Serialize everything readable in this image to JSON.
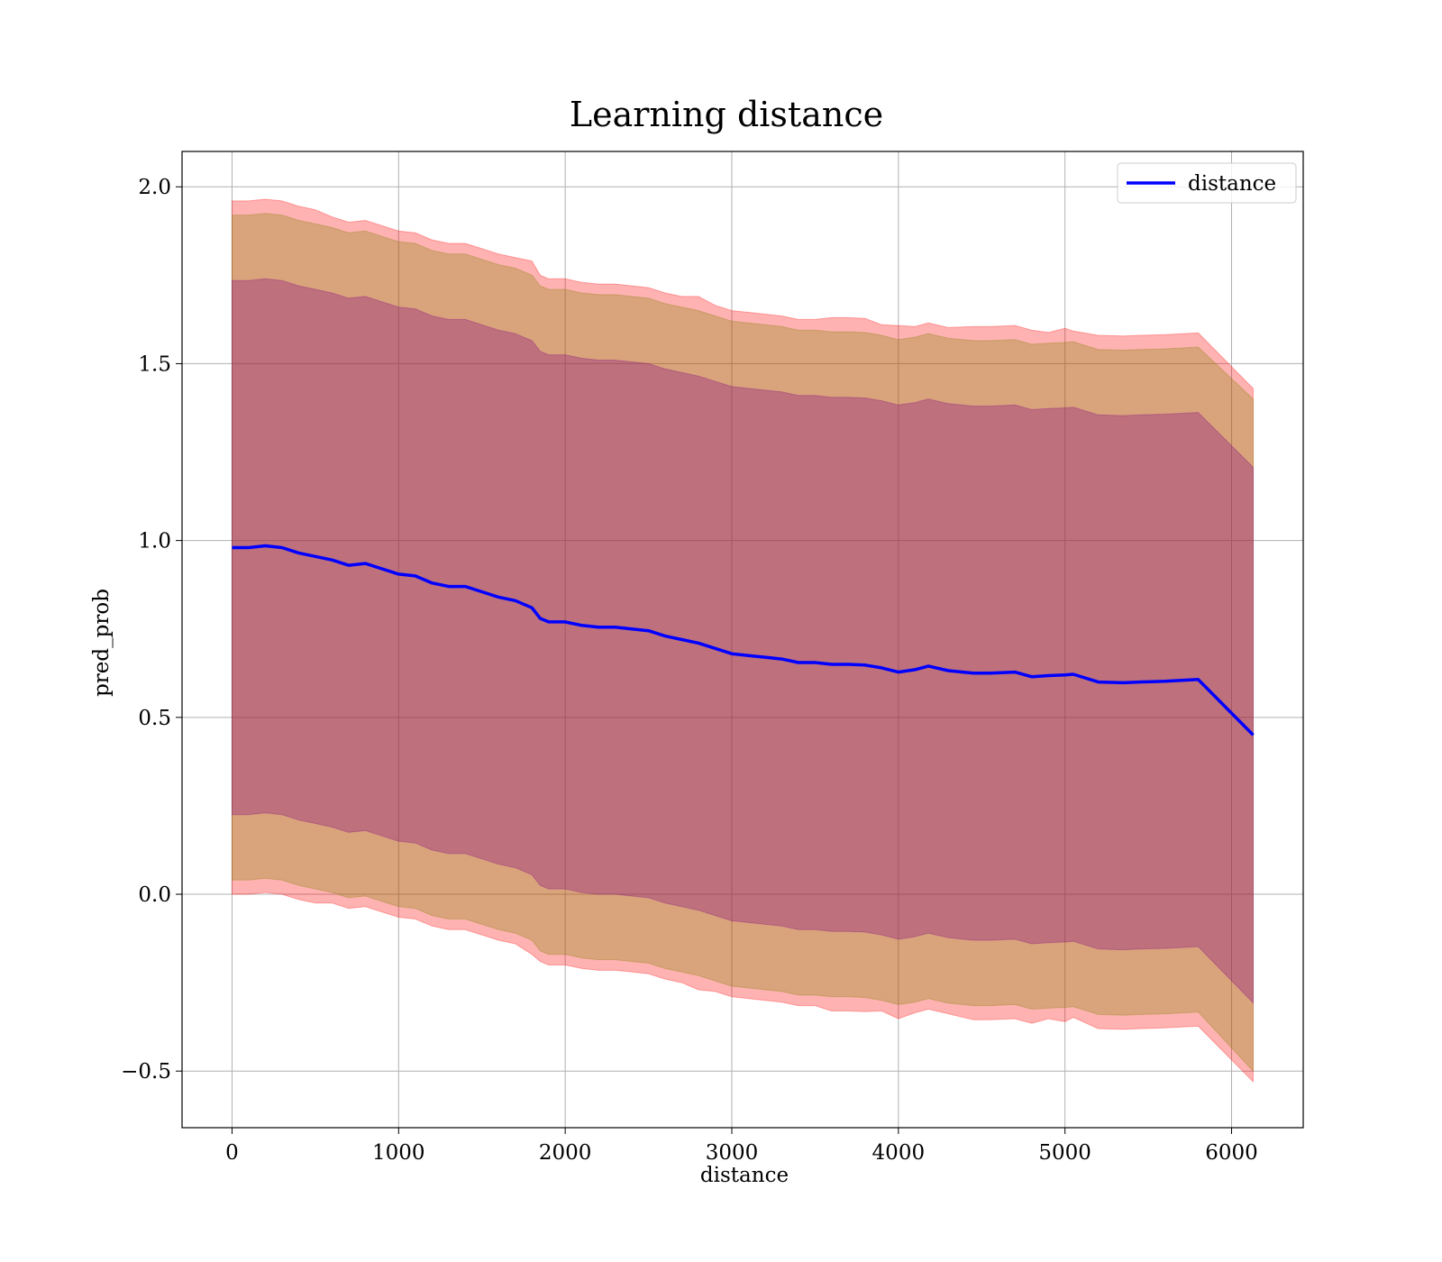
{
  "chart_data": {
    "type": "line",
    "title": "Learning distance",
    "xlabel": "distance",
    "ylabel": "pred_prob",
    "xlim": [
      -300,
      6430
    ],
    "ylim": [
      -0.66,
      2.1
    ],
    "xticks": [
      0,
      1000,
      2000,
      3000,
      4000,
      5000,
      6000
    ],
    "xtick_labels": [
      "0",
      "1000",
      "2000",
      "3000",
      "4000",
      "5000",
      "6000"
    ],
    "yticks": [
      -0.5,
      0.0,
      0.5,
      1.0,
      1.5,
      2.0
    ],
    "ytick_labels": [
      "−0.5",
      "0.0",
      "0.5",
      "1.0",
      "1.5",
      "2.0"
    ],
    "grid": true,
    "legend": {
      "position": "upper-right",
      "entries": [
        "distance"
      ]
    },
    "series": [
      {
        "name": "distance",
        "color": "#0000ff",
        "x": [
          0,
          100,
          200,
          300,
          400,
          500,
          600,
          700,
          800,
          900,
          1000,
          1100,
          1200,
          1300,
          1400,
          1500,
          1600,
          1700,
          1800,
          1850,
          1900,
          2000,
          2100,
          2200,
          2300,
          2400,
          2500,
          2600,
          2700,
          2800,
          2900,
          3000,
          3100,
          3200,
          3300,
          3400,
          3500,
          3600,
          3700,
          3800,
          3900,
          4000,
          4100,
          4180,
          4300,
          4450,
          4550,
          4700,
          4800,
          4900,
          5000,
          5050,
          5200,
          5350,
          5450,
          5600,
          5800,
          6130
        ],
        "y": [
          0.98,
          0.98,
          0.985,
          0.98,
          0.965,
          0.955,
          0.945,
          0.93,
          0.935,
          0.92,
          0.905,
          0.9,
          0.88,
          0.87,
          0.87,
          0.855,
          0.84,
          0.83,
          0.81,
          0.78,
          0.77,
          0.77,
          0.76,
          0.755,
          0.755,
          0.75,
          0.745,
          0.73,
          0.72,
          0.71,
          0.695,
          0.68,
          0.675,
          0.67,
          0.665,
          0.655,
          0.655,
          0.65,
          0.65,
          0.648,
          0.64,
          0.628,
          0.635,
          0.645,
          0.632,
          0.625,
          0.625,
          0.628,
          0.615,
          0.618,
          0.62,
          0.622,
          0.6,
          0.598,
          0.6,
          0.602,
          0.607,
          0.45
        ]
      }
    ],
    "bands": [
      {
        "name": "outer band (light red)",
        "color": "#ff0000",
        "opacity": 0.3,
        "half_width": [
          0.98,
          0.98,
          0.98,
          0.98,
          0.98,
          0.98,
          0.97,
          0.97,
          0.97,
          0.97,
          0.97,
          0.97,
          0.97,
          0.97,
          0.97,
          0.97,
          0.97,
          0.97,
          0.98,
          0.97,
          0.97,
          0.97,
          0.97,
          0.97,
          0.97,
          0.97,
          0.97,
          0.97,
          0.97,
          0.98,
          0.97,
          0.97,
          0.97,
          0.97,
          0.97,
          0.97,
          0.97,
          0.98,
          0.98,
          0.98,
          0.97,
          0.98,
          0.97,
          0.97,
          0.97,
          0.98,
          0.98,
          0.98,
          0.98,
          0.97,
          0.98,
          0.97,
          0.98,
          0.98,
          0.98,
          0.98,
          0.98,
          0.98
        ]
      },
      {
        "name": "middle band (olive)",
        "color": "#808000",
        "opacity": 0.3,
        "half_width": [
          0.94,
          0.94,
          0.94,
          0.94,
          0.94,
          0.94,
          0.94,
          0.94,
          0.94,
          0.94,
          0.94,
          0.94,
          0.94,
          0.94,
          0.94,
          0.94,
          0.94,
          0.94,
          0.94,
          0.94,
          0.94,
          0.94,
          0.94,
          0.94,
          0.94,
          0.94,
          0.94,
          0.94,
          0.94,
          0.94,
          0.94,
          0.94,
          0.94,
          0.94,
          0.94,
          0.94,
          0.94,
          0.94,
          0.94,
          0.94,
          0.94,
          0.94,
          0.94,
          0.94,
          0.94,
          0.94,
          0.94,
          0.94,
          0.94,
          0.94,
          0.94,
          0.94,
          0.94,
          0.94,
          0.94,
          0.94,
          0.94,
          0.95
        ]
      },
      {
        "name": "inner band (purple)",
        "color": "#800080",
        "opacity": 0.3,
        "half_width": [
          0.755,
          0.755,
          0.755,
          0.755,
          0.755,
          0.755,
          0.755,
          0.755,
          0.755,
          0.755,
          0.755,
          0.755,
          0.755,
          0.755,
          0.755,
          0.755,
          0.755,
          0.755,
          0.755,
          0.755,
          0.755,
          0.755,
          0.755,
          0.755,
          0.755,
          0.755,
          0.755,
          0.755,
          0.755,
          0.755,
          0.755,
          0.755,
          0.755,
          0.755,
          0.755,
          0.755,
          0.755,
          0.755,
          0.755,
          0.755,
          0.755,
          0.755,
          0.755,
          0.755,
          0.755,
          0.755,
          0.755,
          0.755,
          0.755,
          0.755,
          0.755,
          0.755,
          0.755,
          0.755,
          0.755,
          0.755,
          0.755,
          0.757
        ]
      }
    ]
  }
}
